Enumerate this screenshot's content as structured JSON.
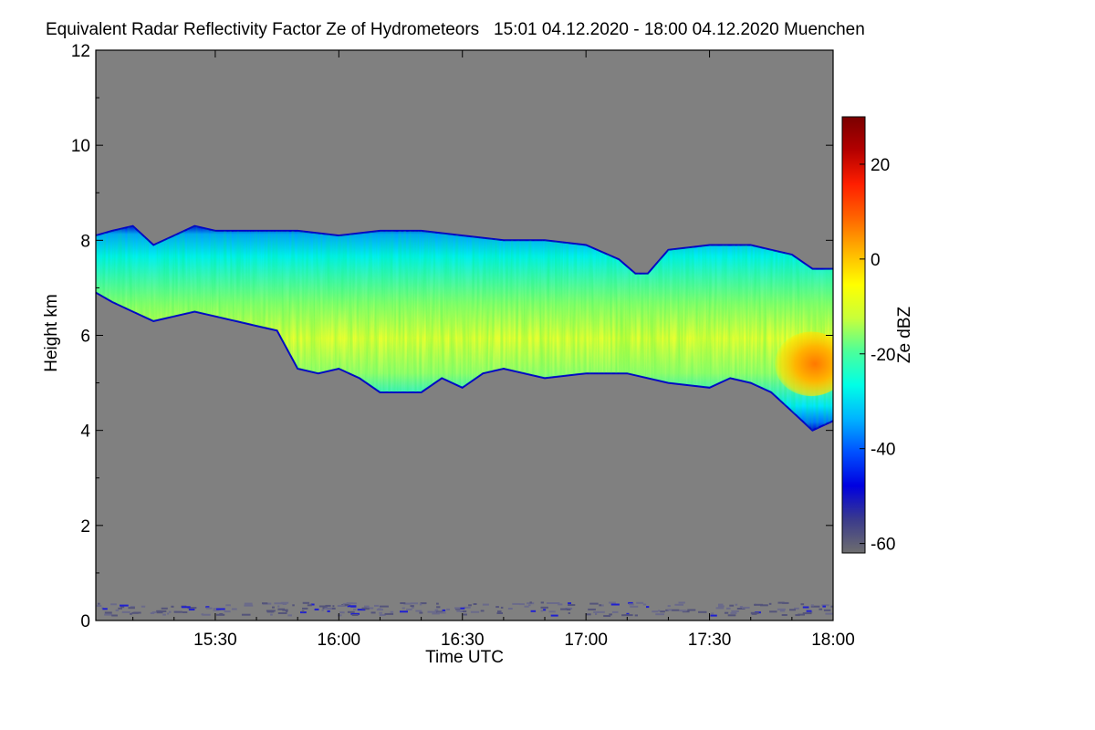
{
  "chart_data": {
    "type": "heatmap",
    "title": "Equivalent Radar Reflectivity Factor Ze of Hydrometeors",
    "period": "15:01 04.12.2020 - 18:00 04.12.2020",
    "station": "Muenchen",
    "xlabel": "Time UTC",
    "ylabel": "Height km",
    "colorbar_label": "Ze dBZ",
    "xlim_minutes_after_1500": [
      1,
      180
    ],
    "ylim_km": [
      0,
      12
    ],
    "x_ticks": [
      {
        "minute": 30,
        "label": "15:30"
      },
      {
        "minute": 60,
        "label": "16:00"
      },
      {
        "minute": 90,
        "label": "16:30"
      },
      {
        "minute": 120,
        "label": "17:00"
      },
      {
        "minute": 150,
        "label": "17:30"
      },
      {
        "minute": 180,
        "label": "18:00"
      }
    ],
    "y_ticks": [
      0,
      2,
      4,
      6,
      8,
      10,
      12
    ],
    "colorbar_range_dbz": [
      -62,
      30
    ],
    "colorbar_ticks": [
      20,
      0,
      -20,
      -40,
      -60
    ],
    "no_signal_color": "#808080",
    "colorscale": [
      "#6e6e6e",
      "#3a3a8c",
      "#0000e0",
      "#0050ff",
      "#00b4ff",
      "#00ffe6",
      "#4cff9a",
      "#c8ff3a",
      "#ffff00",
      "#ffb400",
      "#ff6400",
      "#ff1e00",
      "#b40000",
      "#7a0000"
    ],
    "cloud_top_km": [
      [
        1,
        8.1
      ],
      [
        5,
        8.2
      ],
      [
        10,
        8.3
      ],
      [
        15,
        7.9
      ],
      [
        20,
        8.1
      ],
      [
        25,
        8.3
      ],
      [
        30,
        8.2
      ],
      [
        40,
        8.2
      ],
      [
        50,
        8.2
      ],
      [
        60,
        8.1
      ],
      [
        70,
        8.2
      ],
      [
        80,
        8.2
      ],
      [
        90,
        8.1
      ],
      [
        100,
        8.0
      ],
      [
        110,
        8.0
      ],
      [
        120,
        7.9
      ],
      [
        128,
        7.6
      ],
      [
        132,
        7.3
      ],
      [
        135,
        7.3
      ],
      [
        140,
        7.8
      ],
      [
        150,
        7.9
      ],
      [
        160,
        7.9
      ],
      [
        165,
        7.8
      ],
      [
        170,
        7.7
      ],
      [
        175,
        7.4
      ],
      [
        180,
        7.4
      ]
    ],
    "cloud_base_km": [
      [
        1,
        6.9
      ],
      [
        5,
        6.7
      ],
      [
        10,
        6.5
      ],
      [
        15,
        6.3
      ],
      [
        20,
        6.4
      ],
      [
        25,
        6.5
      ],
      [
        30,
        6.4
      ],
      [
        35,
        6.3
      ],
      [
        40,
        6.2
      ],
      [
        45,
        6.1
      ],
      [
        50,
        5.3
      ],
      [
        55,
        5.2
      ],
      [
        60,
        5.3
      ],
      [
        65,
        5.1
      ],
      [
        70,
        4.8
      ],
      [
        80,
        4.8
      ],
      [
        85,
        5.1
      ],
      [
        90,
        4.9
      ],
      [
        95,
        5.2
      ],
      [
        100,
        5.3
      ],
      [
        110,
        5.1
      ],
      [
        120,
        5.2
      ],
      [
        130,
        5.2
      ],
      [
        140,
        5.0
      ],
      [
        150,
        4.9
      ],
      [
        155,
        5.1
      ],
      [
        160,
        5.0
      ],
      [
        165,
        4.8
      ],
      [
        170,
        4.4
      ],
      [
        175,
        4.0
      ],
      [
        180,
        4.2
      ]
    ],
    "strong_echo_core": {
      "minute_range": [
        165,
        180
      ],
      "height_km_range": [
        4.8,
        6.0
      ],
      "max_dbz": 10
    },
    "ground_clutter_km": [
      0,
      0.4
    ]
  }
}
